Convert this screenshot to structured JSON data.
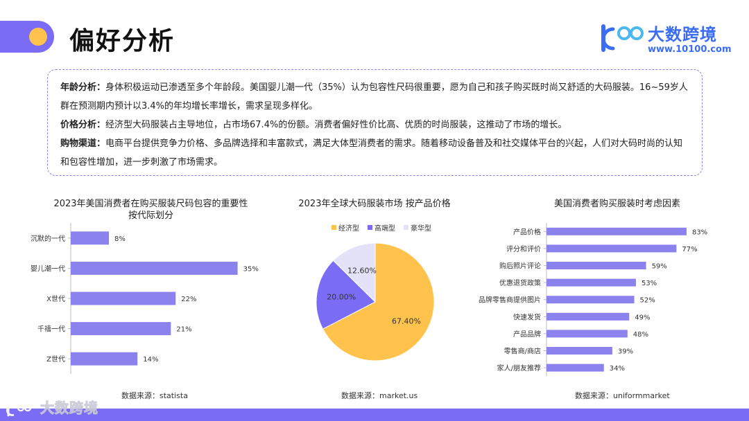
{
  "header": {
    "title": "偏好分析"
  },
  "logo": {
    "brand": "大数跨境",
    "url": "www.10100.com"
  },
  "analysis": [
    {
      "key": "年龄分析：",
      "text": "身体积极运动已渗透至多个年龄段。美国婴儿潮一代（35%）认为包容性尺码很重要，愿为自己和孩子购买既时尚又舒适的大码服装。16~59岁人群在预测期内预计以3.4%的年均增长率增长，需求呈现多样化。"
    },
    {
      "key": "价格分析：",
      "text": "经济型大码服装占主导地位，占市场67.4%的份额。消费者偏好性价比高、优质的时尚服装，这推动了市场的增长。"
    },
    {
      "key": "购物渠道：",
      "text": "电商平台提供竞争力价格、多品牌选择和丰富款式，满足大体型消费者的需求。随着移动设备普及和社交媒体平台的兴起，人们对大码时尚的认知和包容性增加，进一步刺激了市场需求。"
    }
  ],
  "chart_data": [
    {
      "type": "bar",
      "orientation": "horizontal",
      "title": "2023年美国消费者在购买服装尺码包容的重要性",
      "subtitle": "按代际划分",
      "categories": [
        "沉默的一代",
        "婴儿潮一代",
        "X世代",
        "千禧一代",
        "Z世代"
      ],
      "values": [
        8,
        35,
        22,
        21,
        14
      ],
      "value_labels": [
        "8%",
        "35%",
        "22%",
        "21%",
        "14%"
      ],
      "xlim": [
        0,
        40
      ],
      "color": "#8c82ee",
      "source": "数据来源：statista"
    },
    {
      "type": "pie",
      "title": "2023年全球大码服装市场 按产品价格",
      "labels": [
        "经济型",
        "高端型",
        "豪华型"
      ],
      "values": [
        67.4,
        20.0,
        12.6
      ],
      "value_labels": [
        "67.40%",
        "20.00%",
        "12.60%"
      ],
      "colors": [
        "#ffc24d",
        "#7b6cf6",
        "#e4e2f8"
      ],
      "legend": "top",
      "source": "数据来源：market.us"
    },
    {
      "type": "bar",
      "orientation": "horizontal",
      "title": "美国消费者购买服装时考虑因素",
      "categories": [
        "产品价格",
        "评分和评价",
        "购后照片评论",
        "优惠退货政策",
        "品牌零售商提供图片",
        "快速发货",
        "产品品牌",
        "零售商/商店",
        "家人/朋友推荐"
      ],
      "values": [
        83,
        77,
        59,
        53,
        52,
        49,
        48,
        39,
        34
      ],
      "value_labels": [
        "83%",
        "77%",
        "59%",
        "53%",
        "52%",
        "49%",
        "48%",
        "39%",
        "34%"
      ],
      "xlim": [
        0,
        90
      ],
      "color": "#8c82ee",
      "source": "数据来源：uniformmarket"
    }
  ],
  "watermark": {
    "brand": "大数跨境"
  }
}
